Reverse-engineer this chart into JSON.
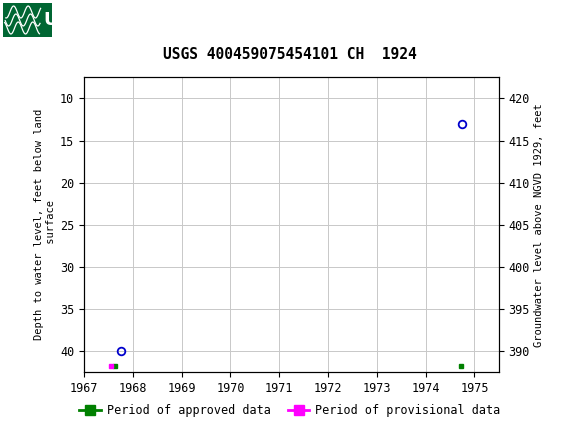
{
  "title": "USGS 400459075454101 CH  1924",
  "header_bg_color": "#006633",
  "ylabel_left": "Depth to water level, feet below land\n surface",
  "ylabel_right": "Groundwater level above NGVD 1929, feet",
  "xlim": [
    1967.0,
    1975.5
  ],
  "ylim_left": [
    42.5,
    7.5
  ],
  "ylim_right": [
    387.5,
    422.5
  ],
  "xticks": [
    1967,
    1968,
    1969,
    1970,
    1971,
    1972,
    1973,
    1974,
    1975
  ],
  "yticks_left": [
    10,
    15,
    20,
    25,
    30,
    35,
    40
  ],
  "yticks_right": [
    420,
    415,
    410,
    405,
    400,
    395,
    390
  ],
  "data_points": [
    {
      "x": 1967.75,
      "y_left": 40.0,
      "color": "#0000cc"
    },
    {
      "x": 1974.75,
      "y_left": 13.0,
      "color": "#0000cc"
    }
  ],
  "approved_squares": [
    {
      "x": 1967.63,
      "y_left": 41.8
    },
    {
      "x": 1974.72,
      "y_left": 41.8
    }
  ],
  "provisional_squares": [
    {
      "x": 1967.55,
      "y_left": 41.8
    }
  ],
  "legend_items": [
    {
      "label": "Period of approved data",
      "color": "#008000"
    },
    {
      "label": "Period of provisional data",
      "color": "#ff00ff"
    }
  ],
  "bg_color": "#ffffff",
  "grid_color": "#c8c8c8"
}
